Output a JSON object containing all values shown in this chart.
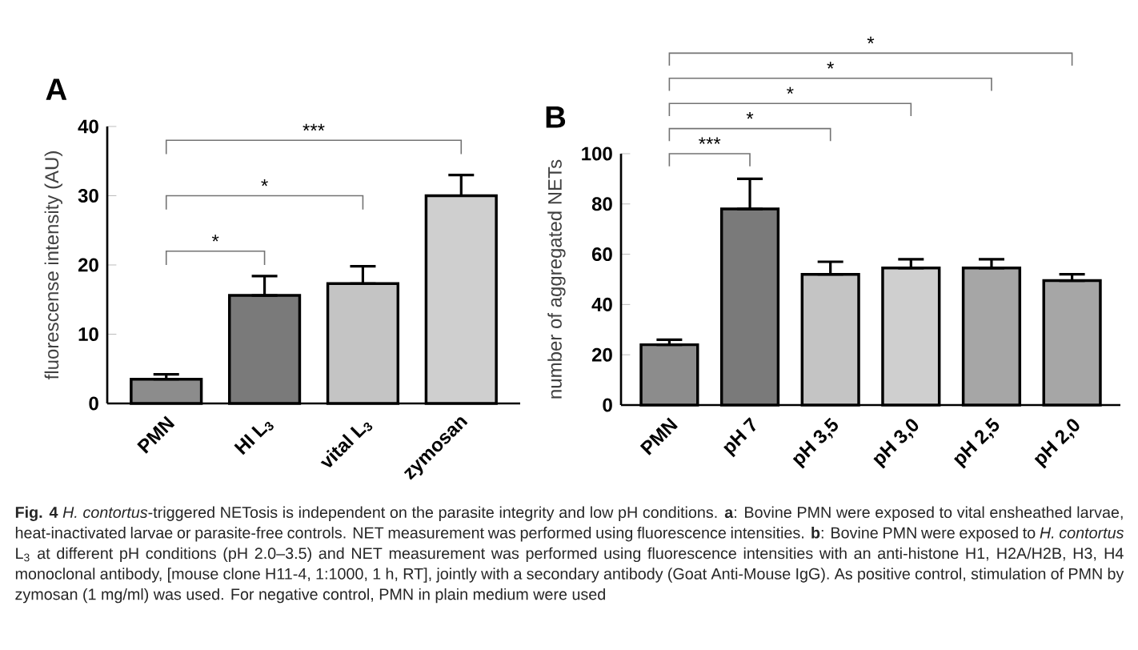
{
  "chart_data": [
    {
      "type": "bar",
      "title": "A",
      "ylabel": "fluorescense intensity (AU)",
      "categories": [
        "PMN",
        "HI L$_{3}$",
        "vital L$_{3}$",
        "zymosan"
      ],
      "values": [
        3.5,
        15.6,
        17.3,
        30
      ],
      "errors": [
        [
          3.5,
          4.2
        ],
        [
          15.6,
          18.4
        ],
        [
          17.3,
          19.8
        ],
        [
          30,
          33
        ]
      ],
      "colors": [
        "#8c8c8c",
        "#7a7a7a",
        "#c4c4c4",
        "#cfcfcf"
      ],
      "ylim": [
        0,
        40
      ],
      "yticks": [
        0,
        10,
        20,
        30,
        40
      ],
      "grid": false,
      "annotations": [
        "*",
        "*",
        "***"
      ]
    },
    {
      "type": "bar",
      "title": "B",
      "ylabel": "number of aggregated NETs",
      "categories": [
        "PMN",
        "pH 7",
        "pH 3,5",
        "pH 3,0",
        "pH 2,5",
        "pH 2,0"
      ],
      "values": [
        24,
        78,
        52,
        54.5,
        54.5,
        49.5
      ],
      "errors": [
        [
          24,
          26
        ],
        [
          78,
          90
        ],
        [
          52,
          57
        ],
        [
          54.5,
          58
        ],
        [
          54.5,
          58
        ],
        [
          49.5,
          52
        ]
      ],
      "colors": [
        "#8c8c8c",
        "#7a7a7a",
        "#c4c4c4",
        "#cfcfcf",
        "#a6a6a6",
        "#a6a6a6"
      ],
      "ylim": [
        0,
        100
      ],
      "yticks": [
        0,
        20,
        40,
        60,
        80,
        100
      ],
      "grid": false,
      "annotations": [
        "***",
        "*",
        "*",
        "*",
        "*"
      ]
    },
    {
      "type": "other",
      "annotations": [
        "**Fig. 4** *H. contortus*-triggered NETosis is independent on the parasite integrity and low pH conditions. **a**: Bovine PMN were exposed to vital ensheathed larvae, heat-inactivated larvae or parasite-free controls. NET measurement was performed using fluorescence intensities. **b**: Bovine PMN were exposed to *H. contortus* L$_{3}$ at different pH conditions (pH 2.0–3.5) and NET measurement was performed using fluorescence intensities with an anti-histone H1, H2A/H2B, H3, H4 monoclonal antibody, [mouse clone H11-4, 1:1000, 1 h, RT], jointly with a secondary antibody (Goat Anti-Mouse IgG). As positive control, stimulation of PMN by zymosan (1 mg/ml) was used. For negative control, PMN in plain medium were used"
      ]
    }
  ]
}
